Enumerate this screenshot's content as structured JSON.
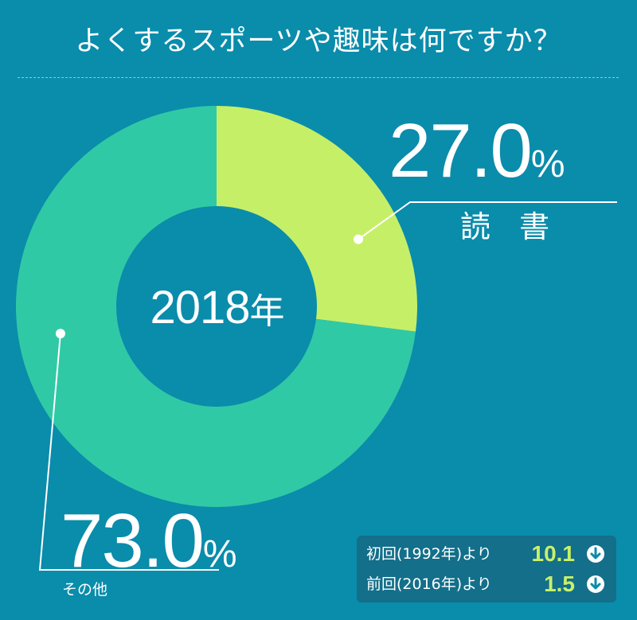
{
  "title": "よくするスポーツや趣味は何ですか？",
  "colors": {
    "background": "#0a8cab",
    "reading": "#c6ef68",
    "other": "#30c9a5",
    "compare_box": "#136f8a",
    "compare_value": "#c8f06a"
  },
  "chart_data": {
    "type": "pie",
    "donut": true,
    "center_label": "2018",
    "center_label_unit": "年",
    "categories": [
      "読書",
      "その他"
    ],
    "values": [
      27.0,
      73.0
    ],
    "unit": "%"
  },
  "slices": {
    "reading": {
      "value_text": "27.0",
      "unit": "%",
      "label": "読 書"
    },
    "other": {
      "value_text": "73.0",
      "unit": "%",
      "label": "その他"
    }
  },
  "comparison": [
    {
      "label": "初回(1992年)より",
      "value": "10.1",
      "direction_icon": "down-arrow-circle-icon"
    },
    {
      "label": "前回(2016年)より",
      "value": "1.5",
      "direction_icon": "down-arrow-circle-icon"
    }
  ]
}
